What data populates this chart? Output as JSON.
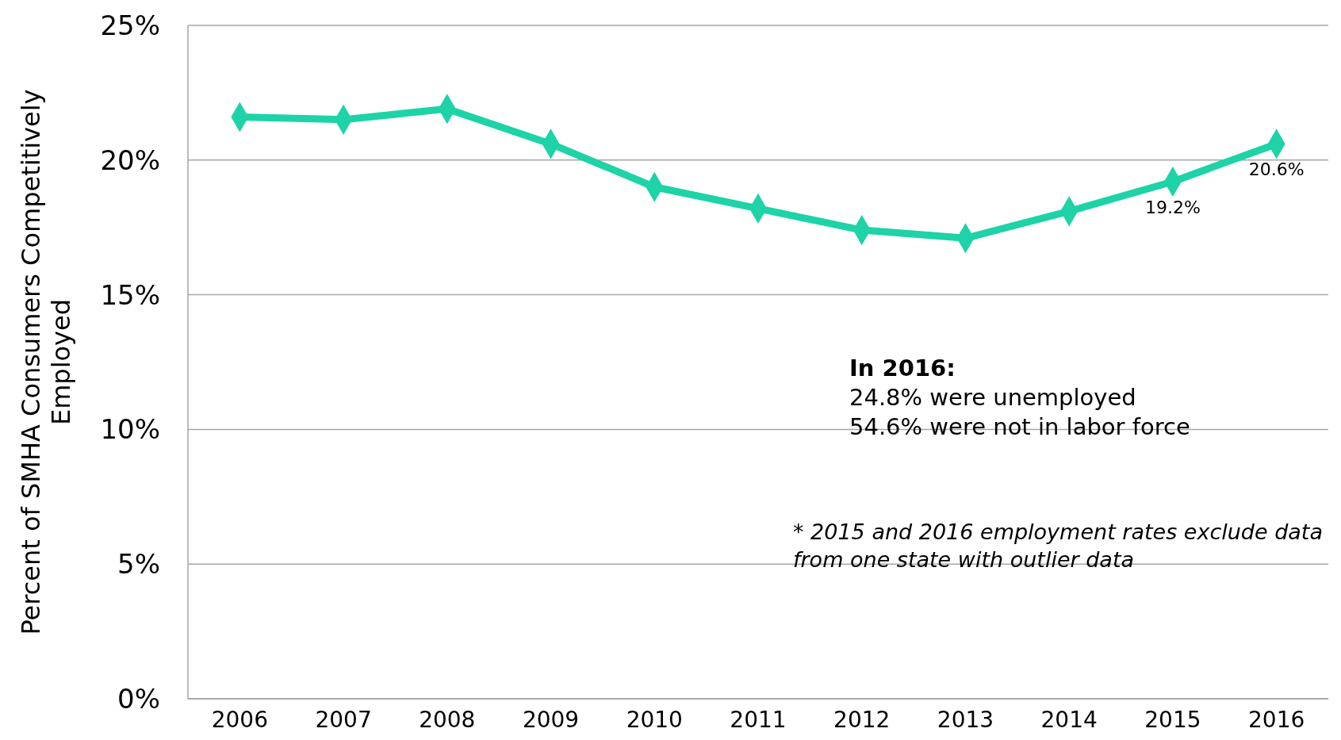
{
  "chart_data": {
    "type": "line",
    "ylabel": "Percent of SMHA Consumers Competitively Employed",
    "categories": [
      "2006",
      "2007",
      "2008",
      "2009",
      "2010",
      "2011",
      "2012",
      "2013",
      "2014",
      "2015",
      "2016"
    ],
    "series": [
      {
        "color": "#1dd3a7",
        "values": [
          21.6,
          21.5,
          21.9,
          20.6,
          19.0,
          18.2,
          17.4,
          17.1,
          18.1,
          19.2,
          20.6
        ],
        "value_labels": [
          null,
          null,
          null,
          null,
          null,
          null,
          null,
          null,
          null,
          "19.2%",
          "20.6%"
        ]
      }
    ],
    "ylim": [
      0,
      25
    ],
    "yticks": [
      {
        "value": 0,
        "label": "0%"
      },
      {
        "value": 5,
        "label": "5%"
      },
      {
        "value": 10,
        "label": "10%"
      },
      {
        "value": 15,
        "label": "15%"
      },
      {
        "value": 20,
        "label": "20%"
      },
      {
        "value": 25,
        "label": "25%"
      }
    ],
    "grid": "y",
    "marker": "diamond",
    "line_style": "solid",
    "annotations": [
      "In 2016:",
      "24.8% were unemployed",
      "54.6% were not in labor force",
      "* 2015 and 2016 employment rates exclude data from one state with outlier data"
    ]
  }
}
